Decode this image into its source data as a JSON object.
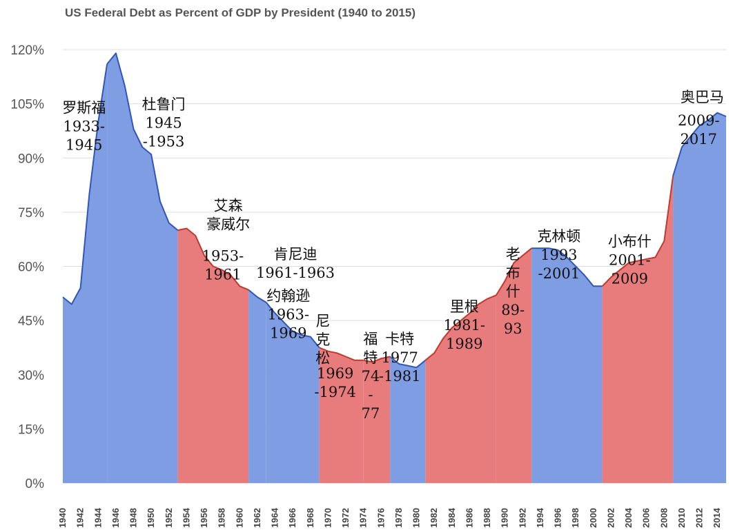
{
  "chart_data": {
    "type": "area",
    "title": "US Federal Debt as Percent of GDP by President (1940 to 2015)",
    "xlabel": "",
    "ylabel": "",
    "xlim": [
      1940,
      2015
    ],
    "ylim": [
      0,
      120
    ],
    "yticks": [
      0,
      15,
      30,
      45,
      60,
      75,
      90,
      105,
      120
    ],
    "ytick_labels": [
      "0%",
      "15%",
      "30%",
      "45%",
      "60%",
      "75%",
      "90%",
      "105%",
      "120%"
    ],
    "xticks": [
      1940,
      1942,
      1944,
      1946,
      1948,
      1950,
      1952,
      1954,
      1956,
      1958,
      1960,
      1962,
      1964,
      1966,
      1968,
      1970,
      1972,
      1974,
      1976,
      1978,
      1980,
      1982,
      1984,
      1986,
      1988,
      1990,
      1992,
      1994,
      1996,
      1998,
      2000,
      2002,
      2004,
      2006,
      2008,
      2010,
      2012,
      2014
    ],
    "grid": true,
    "legend": "none",
    "series": [
      {
        "name": "Federal debt (% of GDP)",
        "x": [
          1940,
          1941,
          1942,
          1943,
          1944,
          1945,
          1946,
          1947,
          1948,
          1949,
          1950,
          1951,
          1952,
          1953,
          1954,
          1955,
          1956,
          1957,
          1958,
          1959,
          1960,
          1961,
          1962,
          1963,
          1964,
          1965,
          1966,
          1967,
          1968,
          1969,
          1970,
          1971,
          1972,
          1973,
          1974,
          1975,
          1976,
          1977,
          1978,
          1979,
          1980,
          1981,
          1982,
          1983,
          1984,
          1985,
          1986,
          1987,
          1988,
          1989,
          1990,
          1991,
          1992,
          1993,
          1994,
          1995,
          1996,
          1997,
          1998,
          1999,
          2000,
          2001,
          2002,
          2003,
          2004,
          2005,
          2006,
          2007,
          2008,
          2009,
          2010,
          2011,
          2012,
          2013,
          2014,
          2015
        ],
        "values": [
          51.5,
          49.5,
          54,
          80,
          100,
          116,
          119,
          110,
          98,
          93,
          91,
          78,
          72,
          70,
          70.5,
          68.5,
          63,
          60,
          59,
          57.5,
          54.5,
          53.5,
          51.5,
          50,
          47,
          44.5,
          42,
          41,
          40.5,
          37.5,
          36.5,
          36,
          35,
          34,
          34,
          33.5,
          34.5,
          35,
          33,
          32.5,
          32,
          34,
          36,
          40,
          43,
          45,
          47,
          49.5,
          51,
          52,
          56,
          61,
          63,
          65,
          65,
          65,
          64.5,
          62.5,
          60,
          57.5,
          54.5,
          54.5,
          57,
          59,
          61,
          61.5,
          62,
          62.5,
          67,
          85,
          93,
          96,
          99,
          100.5,
          102.5,
          101.5
        ]
      }
    ],
    "terms": [
      {
        "president": "罗斯福",
        "start": 1940,
        "end": 1945,
        "party": "D"
      },
      {
        "president": "杜鲁门",
        "start": 1945,
        "end": 1953,
        "party": "D"
      },
      {
        "president": "艾森豪威尔",
        "start": 1953,
        "end": 1961,
        "party": "R"
      },
      {
        "president": "肯尼迪",
        "start": 1961,
        "end": 1963,
        "party": "D"
      },
      {
        "president": "约翰逊",
        "start": 1963,
        "end": 1969,
        "party": "D"
      },
      {
        "president": "尼克松",
        "start": 1969,
        "end": 1974,
        "party": "R"
      },
      {
        "president": "福特",
        "start": 1974,
        "end": 1977,
        "party": "R"
      },
      {
        "president": "卡特",
        "start": 1977,
        "end": 1981,
        "party": "D"
      },
      {
        "president": "里根",
        "start": 1981,
        "end": 1989,
        "party": "R"
      },
      {
        "president": "老布什",
        "start": 1989,
        "end": 1993,
        "party": "R"
      },
      {
        "president": "克林顿",
        "start": 1993,
        "end": 2001,
        "party": "D"
      },
      {
        "president": "小布什",
        "start": 2001,
        "end": 2009,
        "party": "R"
      },
      {
        "president": "奥巴马",
        "start": 2009,
        "end": 2015,
        "party": "D"
      }
    ],
    "colors": {
      "D": "#7e9de2",
      "R": "#e87c7c",
      "D_line": "#2f56b8",
      "R_line": "#c0392b"
    },
    "annotations": [
      {
        "id": "roosevelt",
        "lines": [
          "罗斯福",
          "1933-",
          "1945"
        ],
        "x": 1942.4,
        "y": 102.5,
        "anchor": "middle"
      },
      {
        "id": "truman",
        "lines": [
          "杜鲁门",
          "1945",
          "-1953"
        ],
        "x": 1951.4,
        "y": 103.5,
        "anchor": "middle"
      },
      {
        "id": "eisenhower-name",
        "lines": [
          "艾森",
          "豪威尔"
        ],
        "x": 1958.7,
        "y": 75.5,
        "anchor": "middle"
      },
      {
        "id": "eisenhower-years",
        "lines": [
          "1953-",
          "1961"
        ],
        "x": 1958.1,
        "y": 61.5,
        "anchor": "middle"
      },
      {
        "id": "kennedy",
        "lines": [
          "肯尼迪",
          "1961-1963"
        ],
        "x": 1966.3,
        "y": 62,
        "anchor": "middle"
      },
      {
        "id": "johnson",
        "lines": [
          "约翰逊",
          "1963-",
          "1969"
        ],
        "x": 1965.5,
        "y": 50.5,
        "anchor": "middle"
      },
      {
        "id": "nixon-name",
        "lines": [
          "尼",
          "克",
          "松"
        ],
        "x": 1969.4,
        "y": 43.5,
        "anchor": "middle"
      },
      {
        "id": "nixon-years",
        "lines": [
          "1969",
          "-1974"
        ],
        "x": 1970.8,
        "y": 29,
        "anchor": "middle"
      },
      {
        "id": "ford",
        "lines": [
          "福",
          "特",
          "74",
          "-",
          "77"
        ],
        "x": 1974.8,
        "y": 38.5,
        "anchor": "middle"
      },
      {
        "id": "carter",
        "lines": [
          "卡特",
          "1977",
          "-1981"
        ],
        "x": 1978.1,
        "y": 38.5,
        "anchor": "middle"
      },
      {
        "id": "reagan",
        "lines": [
          "里根",
          "1981-",
          "1989"
        ],
        "x": 1985.4,
        "y": 47.5,
        "anchor": "middle"
      },
      {
        "id": "bush-sr",
        "lines": [
          "老",
          "布",
          "什",
          "89-",
          "93"
        ],
        "x": 1990.9,
        "y": 62,
        "anchor": "middle"
      },
      {
        "id": "clinton",
        "lines": [
          "克林顿",
          "1993",
          "-2001"
        ],
        "x": 1996.1,
        "y": 67,
        "anchor": "middle"
      },
      {
        "id": "bush-jr",
        "lines": [
          "小布什",
          "2001-",
          "2009"
        ],
        "x": 2004.1,
        "y": 65.5,
        "anchor": "middle"
      },
      {
        "id": "obama-name",
        "lines": [
          "奥巴马"
        ],
        "x": 2012.3,
        "y": 105.5,
        "anchor": "middle"
      },
      {
        "id": "obama-years",
        "lines": [
          "2009-",
          "2017"
        ],
        "x": 2011.9,
        "y": 99,
        "anchor": "middle"
      }
    ]
  }
}
